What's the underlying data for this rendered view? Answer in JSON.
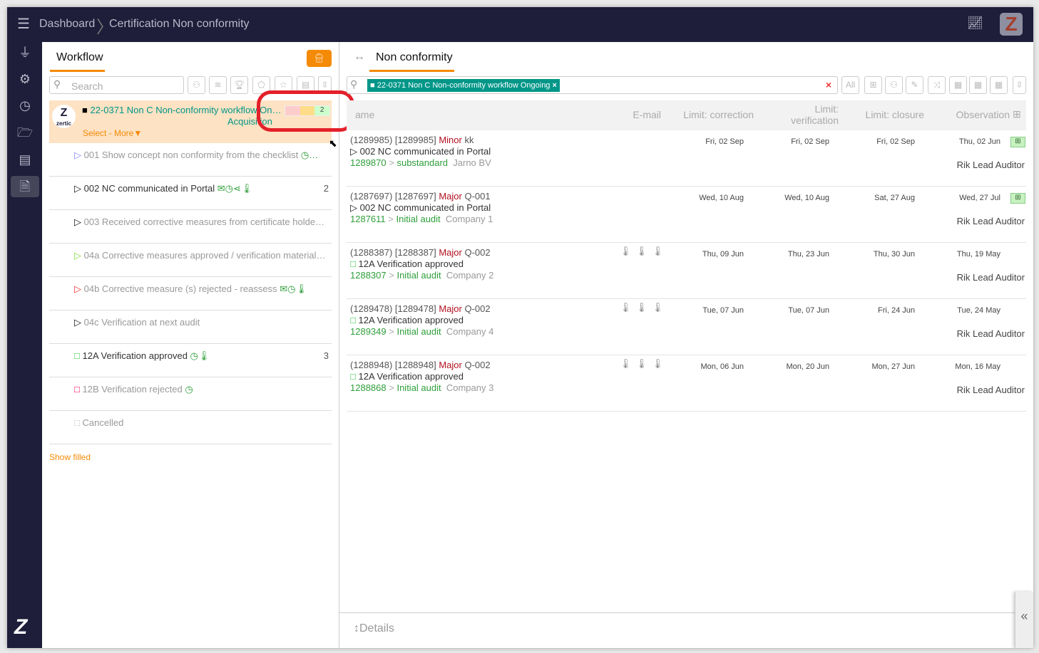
{
  "topbar": {
    "breadcrumb": [
      "Dashboard",
      "Certification Non conformity"
    ],
    "menu_icon": "hamburger-icon",
    "chart_icon": "chart-line-icon",
    "logo_letter": "Z"
  },
  "sidebar": {
    "items": [
      "plug-icon",
      "gear-icon",
      "clock-icon",
      "folder-open-icon",
      "id-card-icon",
      "certificate-icon"
    ],
    "bottom_logo": "Z"
  },
  "workflow": {
    "tab": "Workflow",
    "search_placeholder": "Search",
    "selected": {
      "title": "22-0371 Non C Non-conformity workflow On…",
      "subtitle": "Acquisition",
      "count": "2",
      "actions": "Select - More▼",
      "avatar_text": "Z",
      "avatar_sub": "zertic"
    },
    "steps": [
      {
        "label": "001 Show concept non conformity from the checklist",
        "marker": "▷",
        "color": "#8c8cff",
        "count": "",
        "icons": "◷…",
        "active": false
      },
      {
        "label": "002 NC communicated in Portal",
        "marker": "▷",
        "color": "#111",
        "count": "2",
        "icons": "✉◷⋖🌡",
        "active": true
      },
      {
        "label": "003 Received corrective measures from certificate holde…",
        "marker": "▷",
        "color": "#111",
        "count": "",
        "icons": "",
        "active": false
      },
      {
        "label": "04a Corrective measures approved / verification material…",
        "marker": "▷",
        "color": "#7fdc3a",
        "count": "",
        "icons": "",
        "active": false
      },
      {
        "label": "04b Corrective measure (s) rejected - reassess",
        "marker": "▷",
        "color": "#f33",
        "count": "",
        "icons": "✉◷🌡",
        "active": false
      },
      {
        "label": "04c Verification at next audit",
        "marker": "▷",
        "color": "#111",
        "count": "",
        "icons": "",
        "active": false
      },
      {
        "label": "12A Verification approved",
        "marker": "□",
        "color": "#2ecc40",
        "count": "3",
        "icons": "◷🌡",
        "active": true
      },
      {
        "label": "12B Verification rejected",
        "marker": "□",
        "color": "#f05",
        "count": "",
        "icons": "◷",
        "active": false
      },
      {
        "label": "Cancelled",
        "marker": "□",
        "color": "#ccc",
        "count": "",
        "icons": "",
        "active": false
      }
    ],
    "show_filled": "Show filled"
  },
  "nc": {
    "tab": "Non conformity",
    "filter_chip": "22-0371 Non C Non-conformity workflow Ongoing",
    "filter_all": "All",
    "columns": [
      "ame",
      "E-mail",
      "Limit: correction",
      "Limit: verification",
      "Limit: closure",
      "Observation"
    ],
    "rows": [
      {
        "id": "(1289985) [1289985]",
        "severity": "Minor",
        "code": "kk",
        "status": "002 NC communicated in Portal",
        "status_marker": "▷",
        "ref": "1289870",
        "audit": "substandard",
        "company": "Jarno BV",
        "thermo": false,
        "correction": "Fri, 02 Sep",
        "verification": "Fri, 02 Sep",
        "closure": "Fri, 02 Sep",
        "observation": "Thu, 02 Jun",
        "auditor": "Rik Lead Auditor",
        "flag": true
      },
      {
        "id": "(1287697) [1287697]",
        "severity": "Major",
        "code": "Q-001",
        "status": "002 NC communicated in Portal",
        "status_marker": "▷",
        "ref": "1287611",
        "audit": "Initial audit",
        "company": "Company 1",
        "thermo": false,
        "correction": "Wed, 10 Aug",
        "verification": "Wed, 10 Aug",
        "closure": "Sat, 27 Aug",
        "observation": "Wed, 27 Jul",
        "auditor": "Rik Lead Auditor",
        "flag": true
      },
      {
        "id": "(1288387) [1288387]",
        "severity": "Major",
        "code": "Q-002",
        "status": "12A Verification approved",
        "status_marker": "□",
        "ref": "1288307",
        "audit": "Initial audit",
        "company": "Company 2",
        "thermo": true,
        "correction": "Thu, 09 Jun",
        "verification": "Thu, 23 Jun",
        "closure": "Thu, 30 Jun",
        "observation": "Thu, 19 May",
        "auditor": "Rik Lead Auditor",
        "flag": false
      },
      {
        "id": "(1289478) [1289478]",
        "severity": "Major",
        "code": "Q-002",
        "status": "12A Verification approved",
        "status_marker": "□",
        "ref": "1289349",
        "audit": "Initial audit",
        "company": "Company 4",
        "thermo": true,
        "correction": "Tue, 07 Jun",
        "verification": "Tue, 07 Jun",
        "closure": "Fri, 24 Jun",
        "observation": "Tue, 24 May",
        "auditor": "Rik Lead Auditor",
        "flag": false
      },
      {
        "id": "(1288948) [1288948]",
        "severity": "Major",
        "code": "Q-002",
        "status": "12A Verification approved",
        "status_marker": "□",
        "ref": "1288868",
        "audit": "Initial audit",
        "company": "Company 3",
        "thermo": true,
        "correction": "Mon, 06 Jun",
        "verification": "Mon, 20 Jun",
        "closure": "Mon, 27 Jun",
        "observation": "Mon, 16 May",
        "auditor": "Rik Lead Auditor",
        "flag": false
      }
    ],
    "details": "↕Details",
    "collapse": "«"
  },
  "colors": {
    "topbar": "#1e1d3a",
    "accent": "#f58a07",
    "teal": "#009688",
    "selected_bg": "#fde2c3",
    "highlight": "#e3202a"
  }
}
